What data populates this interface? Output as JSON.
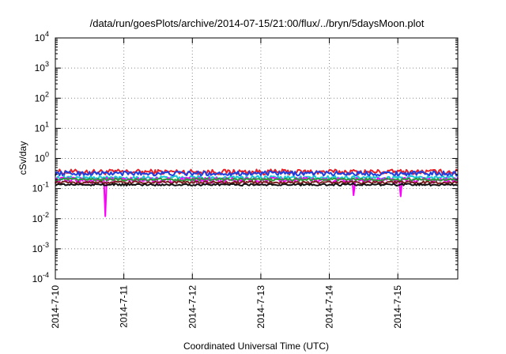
{
  "chart_data": {
    "type": "line",
    "title": "/data/run/goesPlots/archive/2014-07-15/21:00/flux/../bryn/5daysMoon.plot",
    "xlabel": "Coordinated Universal Time (UTC)",
    "ylabel": "cSv/day",
    "yscale": "log",
    "ylim": [
      0.0001,
      10000
    ],
    "y_ticks": [
      {
        "base": "10",
        "exp": "-4"
      },
      {
        "base": "10",
        "exp": "-3"
      },
      {
        "base": "10",
        "exp": "-2"
      },
      {
        "base": "10",
        "exp": "-1"
      },
      {
        "base": "10",
        "exp": "0"
      },
      {
        "base": "10",
        "exp": "1"
      },
      {
        "base": "10",
        "exp": "2"
      },
      {
        "base": "10",
        "exp": "3"
      },
      {
        "base": "10",
        "exp": "4"
      }
    ],
    "xlim": [
      "2014-07-10 00:00",
      "2014-07-15 21:00"
    ],
    "x_ticks": [
      "2014-7-10",
      "2014-7-11",
      "2014-7-12",
      "2014-7-13",
      "2014-7-14",
      "2014-7-15"
    ],
    "grid": true,
    "sample_step_hours": 0.5,
    "series": [
      {
        "color": "#e8202a",
        "base": 0.36,
        "spread": 0.25,
        "dips": []
      },
      {
        "color": "#1f3fe0",
        "base": 0.32,
        "spread": 0.22,
        "dips": []
      },
      {
        "color": "#18c8d8",
        "base": 0.23,
        "spread": 0.18,
        "dips": []
      },
      {
        "color": "#ff00ff",
        "base": 0.19,
        "spread": 0.28,
        "dips": [
          {
            "x": "2014-07-10 17:30",
            "y": 0.012
          },
          {
            "x": "2014-07-14 08:30",
            "y": 0.06
          },
          {
            "x": "2014-07-15 01:00",
            "y": 0.055
          }
        ]
      },
      {
        "color": "#2a9a3a",
        "base": 0.2,
        "spread": 0.12,
        "dips": []
      },
      {
        "color": "#7a1f20",
        "base": 0.16,
        "spread": 0.12,
        "dips": []
      },
      {
        "color": "#111111",
        "base": 0.135,
        "spread": 0.1,
        "dips": []
      }
    ]
  }
}
